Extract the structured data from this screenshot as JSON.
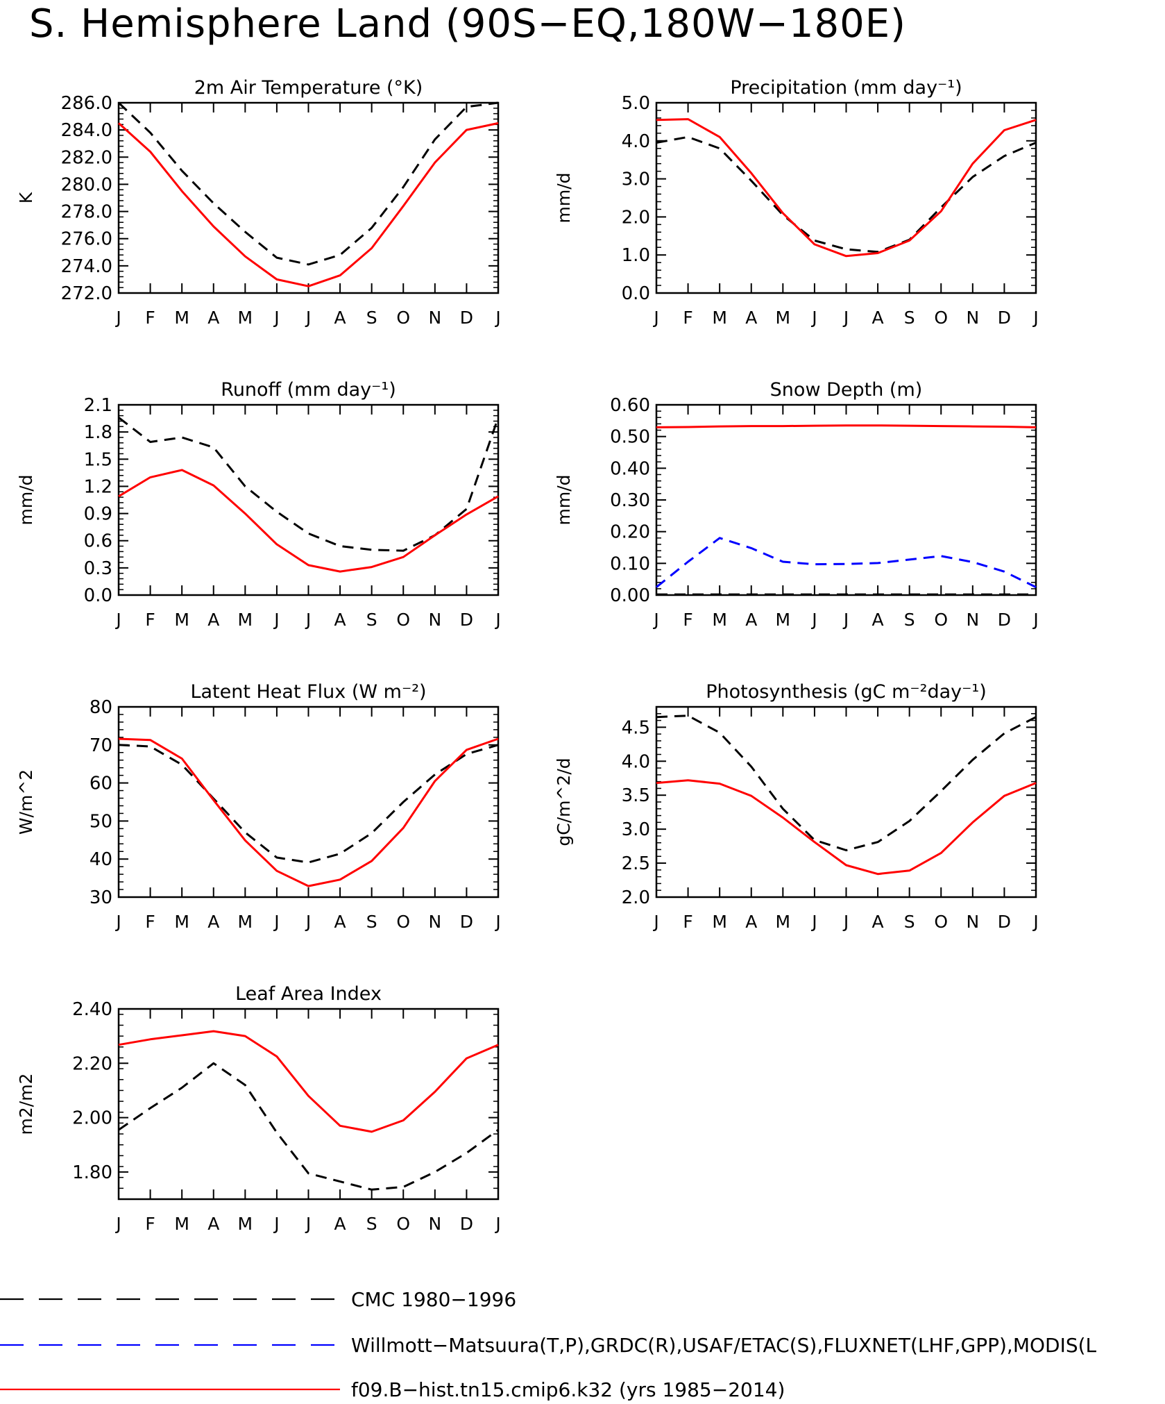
{
  "page": {
    "title": "S. Hemisphere Land (90S−EQ,180W−180E)"
  },
  "legend": {
    "placement": "bottom",
    "entries": [
      {
        "label": "CMC 1980−1996",
        "color": "#000000",
        "dash": "long-dash"
      },
      {
        "label": "Willmott−Matsuura(T,P),GRDC(R),USAF/ETAC(S),FLUXNET(LHF,GPP),MODIS(L",
        "color": "#0000ff",
        "dash": "long-dash"
      },
      {
        "label": "f09.B−hist.tn15.cmip6.k32 (yrs 1985−2014)",
        "color": "#ff0000",
        "dash": "solid"
      }
    ]
  },
  "chart_data": [
    {
      "type": "line",
      "title": "2m Air Temperature (°K)",
      "ylabel": "K",
      "xlabel": "",
      "categories": [
        "J",
        "F",
        "M",
        "A",
        "M",
        "J",
        "J",
        "A",
        "S",
        "O",
        "N",
        "D",
        "J"
      ],
      "ylim": [
        272,
        286
      ],
      "yticks": [
        "272.0",
        "274.0",
        "276.0",
        "278.0",
        "280.0",
        "282.0",
        "284.0",
        "286.0"
      ],
      "grid": false,
      "series": [
        {
          "color": "#000000",
          "dash": "dashed",
          "values": [
            286.0,
            283.8,
            281.0,
            278.6,
            276.5,
            274.6,
            274.1,
            274.8,
            276.8,
            279.8,
            283.3,
            285.7,
            286.0
          ]
        },
        {
          "color": "#ff0000",
          "dash": "solid",
          "values": [
            284.5,
            282.4,
            279.5,
            276.9,
            274.7,
            273.0,
            272.5,
            273.3,
            275.3,
            278.4,
            281.6,
            284.0,
            284.5
          ]
        }
      ]
    },
    {
      "type": "line",
      "title": "Precipitation (mm day⁻¹)",
      "ylabel": "mm/d",
      "xlabel": "",
      "categories": [
        "J",
        "F",
        "M",
        "A",
        "M",
        "J",
        "J",
        "A",
        "S",
        "O",
        "N",
        "D",
        "J"
      ],
      "ylim": [
        0,
        5
      ],
      "yticks": [
        "0.0",
        "1.0",
        "2.0",
        "3.0",
        "4.0",
        "5.0"
      ],
      "grid": false,
      "series": [
        {
          "color": "#000000",
          "dash": "dashed",
          "values": [
            3.95,
            4.1,
            3.8,
            2.95,
            2.05,
            1.38,
            1.15,
            1.08,
            1.4,
            2.25,
            3.05,
            3.6,
            3.95
          ]
        },
        {
          "color": "#ff0000",
          "dash": "solid",
          "values": [
            4.55,
            4.57,
            4.1,
            3.15,
            2.1,
            1.28,
            0.97,
            1.05,
            1.38,
            2.15,
            3.4,
            4.28,
            4.55
          ]
        }
      ]
    },
    {
      "type": "line",
      "title": "Runoff (mm day⁻¹)",
      "ylabel": "mm/d",
      "xlabel": "",
      "categories": [
        "J",
        "F",
        "M",
        "A",
        "M",
        "J",
        "J",
        "A",
        "S",
        "O",
        "N",
        "D",
        "J"
      ],
      "ylim": [
        0,
        2.1
      ],
      "yticks": [
        "0.0",
        "0.3",
        "0.6",
        "0.9",
        "1.2",
        "1.5",
        "1.8",
        "2.1"
      ],
      "grid": false,
      "series": [
        {
          "color": "#000000",
          "dash": "dashed",
          "values": [
            1.96,
            1.69,
            1.74,
            1.63,
            1.2,
            0.92,
            0.68,
            0.54,
            0.5,
            0.49,
            0.66,
            0.95,
            1.96
          ]
        },
        {
          "color": "#ff0000",
          "dash": "solid",
          "values": [
            1.09,
            1.3,
            1.38,
            1.21,
            0.9,
            0.56,
            0.33,
            0.26,
            0.31,
            0.42,
            0.66,
            0.89,
            1.09
          ]
        }
      ]
    },
    {
      "type": "line",
      "title": "Snow Depth (m)",
      "ylabel": "mm/d",
      "xlabel": "",
      "categories": [
        "J",
        "F",
        "M",
        "A",
        "M",
        "J",
        "J",
        "A",
        "S",
        "O",
        "N",
        "D",
        "J"
      ],
      "ylim": [
        0,
        0.6
      ],
      "yticks": [
        "0.00",
        "0.10",
        "0.20",
        "0.30",
        "0.40",
        "0.50",
        "0.60"
      ],
      "grid": false,
      "series": [
        {
          "color": "#000000",
          "dash": "dashed",
          "values": [
            0.002,
            0.002,
            0.002,
            0.002,
            0.002,
            0.002,
            0.002,
            0.002,
            0.002,
            0.002,
            0.002,
            0.002,
            0.002
          ]
        },
        {
          "color": "#0000ff",
          "dash": "dashed",
          "values": [
            0.025,
            0.105,
            0.18,
            0.148,
            0.105,
            0.097,
            0.098,
            0.101,
            0.112,
            0.123,
            0.104,
            0.074,
            0.025
          ]
        },
        {
          "color": "#ff0000",
          "dash": "solid",
          "values": [
            0.529,
            0.53,
            0.532,
            0.533,
            0.533,
            0.534,
            0.535,
            0.535,
            0.534,
            0.533,
            0.532,
            0.531,
            0.529
          ]
        }
      ]
    },
    {
      "type": "line",
      "title": "Latent Heat Flux (W m⁻²)",
      "ylabel": "W/m^2",
      "xlabel": "",
      "categories": [
        "J",
        "F",
        "M",
        "A",
        "M",
        "J",
        "J",
        "A",
        "S",
        "O",
        "N",
        "D",
        "J"
      ],
      "ylim": [
        30,
        80
      ],
      "yticks": [
        "30",
        "40",
        "50",
        "60",
        "70",
        "80"
      ],
      "grid": false,
      "series": [
        {
          "color": "#000000",
          "dash": "dashed",
          "values": [
            70.0,
            69.6,
            64.8,
            55.9,
            47.0,
            40.4,
            39.1,
            41.4,
            46.8,
            55.0,
            62.2,
            67.6,
            70.0
          ]
        },
        {
          "color": "#ff0000",
          "dash": "solid",
          "values": [
            71.6,
            71.3,
            66.4,
            55.5,
            44.9,
            36.9,
            32.9,
            34.6,
            39.5,
            48.2,
            60.5,
            68.7,
            71.6
          ]
        }
      ]
    },
    {
      "type": "line",
      "title": "Photosynthesis (gC m⁻²day⁻¹)",
      "ylabel": "gC/m^2/d",
      "xlabel": "",
      "categories": [
        "J",
        "F",
        "M",
        "A",
        "M",
        "J",
        "J",
        "A",
        "S",
        "O",
        "N",
        "D",
        "J"
      ],
      "ylim": [
        2.0,
        4.8
      ],
      "yticks": [
        "2.0",
        "2.5",
        "3.0",
        "3.5",
        "4.0",
        "4.5"
      ],
      "grid": false,
      "series": [
        {
          "color": "#000000",
          "dash": "dashed",
          "values": [
            4.65,
            4.67,
            4.42,
            3.92,
            3.3,
            2.84,
            2.69,
            2.81,
            3.12,
            3.56,
            4.02,
            4.41,
            4.65
          ]
        },
        {
          "color": "#ff0000",
          "dash": "solid",
          "values": [
            3.68,
            3.72,
            3.67,
            3.49,
            3.17,
            2.81,
            2.47,
            2.34,
            2.39,
            2.65,
            3.1,
            3.49,
            3.68
          ]
        }
      ]
    },
    {
      "type": "line",
      "title": "Leaf Area Index",
      "ylabel": "m2/m2",
      "xlabel": "",
      "categories": [
        "J",
        "F",
        "M",
        "A",
        "M",
        "J",
        "J",
        "A",
        "S",
        "O",
        "N",
        "D",
        "J"
      ],
      "ylim": [
        1.7,
        2.4
      ],
      "yticks": [
        "1.80",
        "2.00",
        "2.20",
        "2.40"
      ],
      "grid": false,
      "series": [
        {
          "color": "#000000",
          "dash": "dashed",
          "values": [
            1.955,
            2.035,
            2.11,
            2.2,
            2.12,
            1.945,
            1.795,
            1.765,
            1.735,
            1.745,
            1.8,
            1.87,
            1.955
          ]
        },
        {
          "color": "#ff0000",
          "dash": "solid",
          "values": [
            2.268,
            2.288,
            2.303,
            2.318,
            2.3,
            2.225,
            2.08,
            1.97,
            1.948,
            1.99,
            2.095,
            2.218,
            2.268
          ]
        }
      ]
    }
  ]
}
